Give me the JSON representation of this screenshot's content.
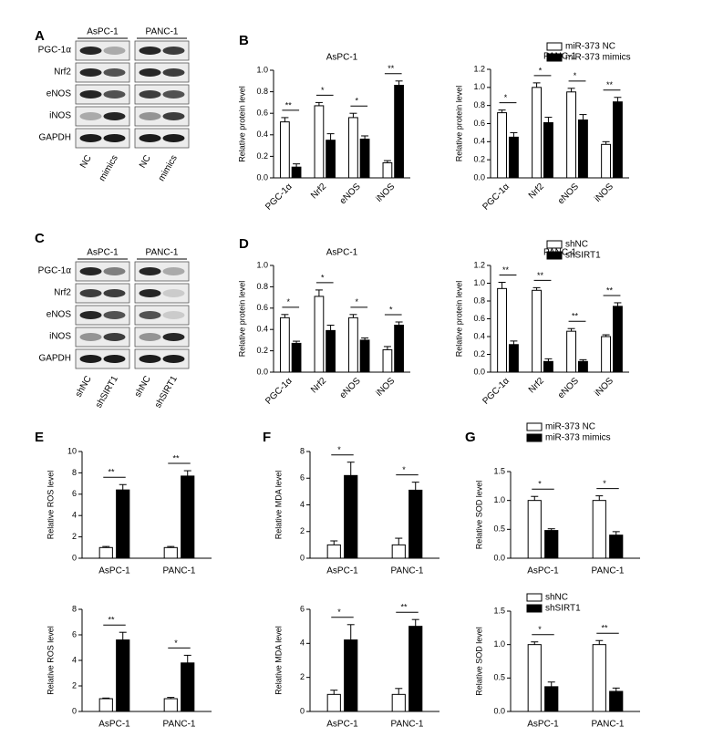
{
  "panels": [
    "A",
    "B",
    "C",
    "D",
    "E",
    "F",
    "G"
  ],
  "blots": [
    {
      "cell_lines": [
        "AsPC-1",
        "PANC-1"
      ],
      "proteins": [
        "PGC-1α",
        "Nrf2",
        "eNOS",
        "iNOS",
        "GAPDH"
      ],
      "lanes": [
        "NC",
        "mimics",
        "NC",
        "mimics"
      ]
    },
    {
      "cell_lines": [
        "AsPC-1",
        "PANC-1"
      ],
      "proteins": [
        "PGC-1α",
        "Nrf2",
        "eNOS",
        "iNOS",
        "GAPDH"
      ],
      "lanes": [
        "shNC",
        "shSIRT1",
        "shNC",
        "shSIRT1"
      ]
    }
  ],
  "chart_data": [
    {
      "type": "bar",
      "title": "AsPC-1",
      "ylabel": "Relative protein level",
      "categories": [
        "PGC-1α",
        "Nrf2",
        "eNOS",
        "iNOS"
      ],
      "series": [
        {
          "color": "#ffffff",
          "values": [
            0.52,
            0.67,
            0.56,
            0.14
          ],
          "errors": [
            0.04,
            0.03,
            0.04,
            0.02
          ]
        },
        {
          "color": "#000000",
          "values": [
            0.1,
            0.35,
            0.36,
            0.86
          ],
          "errors": [
            0.03,
            0.06,
            0.03,
            0.04
          ]
        }
      ],
      "annotations": [
        "**",
        "*",
        "*",
        "**"
      ],
      "ylim": [
        0,
        1
      ],
      "yticks": [
        {
          "value": 0,
          "label": "0.0"
        },
        0.2,
        0.4,
        0.6,
        0.8,
        {
          "value": 1,
          "label": "1.0"
        }
      ]
    },
    {
      "type": "bar",
      "title": "PANC-1",
      "ylabel": "Relative protein level",
      "categories": [
        "PGC-1α",
        "Nrf2",
        "eNOS",
        "iNOS"
      ],
      "series": [
        {
          "name": "miR-373 NC",
          "color": "#ffffff",
          "values": [
            0.72,
            1.0,
            0.95,
            0.37
          ],
          "errors": [
            0.03,
            0.05,
            0.04,
            0.03
          ]
        },
        {
          "name": "miR-373 mimics",
          "color": "#000000",
          "values": [
            0.45,
            0.61,
            0.64,
            0.84
          ],
          "errors": [
            0.05,
            0.06,
            0.06,
            0.05
          ]
        }
      ],
      "annotations": [
        "*",
        "*",
        "*",
        "**"
      ],
      "ylim": [
        0,
        1.2
      ],
      "legend": "upper right",
      "yticks": [
        {
          "value": 0,
          "label": "0.0"
        },
        0.2,
        0.4,
        0.6,
        0.8,
        {
          "value": 1,
          "label": "1.0"
        },
        1.2
      ]
    },
    {
      "type": "bar",
      "title": "AsPC-1",
      "ylabel": "Relative protein level",
      "categories": [
        "PGC-1α",
        "Nrf2",
        "eNOS",
        "iNOS"
      ],
      "series": [
        {
          "color": "#ffffff",
          "values": [
            0.51,
            0.71,
            0.51,
            0.21
          ],
          "errors": [
            0.03,
            0.06,
            0.03,
            0.03
          ]
        },
        {
          "color": "#000000",
          "values": [
            0.27,
            0.39,
            0.3,
            0.44
          ],
          "errors": [
            0.02,
            0.05,
            0.02,
            0.03
          ]
        }
      ],
      "annotations": [
        "*",
        "*",
        "*",
        "*"
      ],
      "ylim": [
        0,
        1
      ],
      "yticks": [
        {
          "value": 0,
          "label": "0.0"
        },
        0.2,
        0.4,
        0.6,
        0.8,
        {
          "value": 1,
          "label": "1.0"
        }
      ]
    },
    {
      "type": "bar",
      "title": "PANC-1",
      "ylabel": "Relative protein level",
      "categories": [
        "PGC-1α",
        "Nrf2",
        "eNOS",
        "iNOS"
      ],
      "series": [
        {
          "name": "shNC",
          "color": "#ffffff",
          "values": [
            0.94,
            0.92,
            0.46,
            0.4
          ],
          "errors": [
            0.07,
            0.03,
            0.03,
            0.02
          ]
        },
        {
          "name": "shSIRT1",
          "color": "#000000",
          "values": [
            0.31,
            0.12,
            0.12,
            0.74
          ],
          "errors": [
            0.04,
            0.03,
            0.02,
            0.04
          ]
        }
      ],
      "annotations": [
        "**",
        "**",
        "**",
        "**"
      ],
      "ylim": [
        0,
        1.2
      ],
      "legend": "upper right",
      "yticks": [
        {
          "value": 0,
          "label": "0.0"
        },
        0.2,
        0.4,
        0.6,
        0.8,
        {
          "value": 1,
          "label": "1.0"
        },
        1.2
      ]
    },
    {
      "type": "bar",
      "ylabel": "Relative ROS level",
      "categories": [
        "AsPC-1",
        "PANC-1"
      ],
      "series": [
        {
          "color": "#ffffff",
          "values": [
            1.0,
            1.0
          ],
          "errors": [
            0.1,
            0.1
          ]
        },
        {
          "color": "#000000",
          "values": [
            6.4,
            7.7
          ],
          "errors": [
            0.5,
            0.5
          ]
        }
      ],
      "annotations": [
        "**",
        "**"
      ],
      "ylim": [
        0,
        10
      ],
      "yticks": [
        0,
        2,
        4,
        6,
        8,
        10
      ]
    },
    {
      "type": "bar",
      "ylabel": "Relative MDA level",
      "categories": [
        "AsPC-1",
        "PANC-1"
      ],
      "series": [
        {
          "color": "#ffffff",
          "values": [
            1.0,
            1.0
          ],
          "errors": [
            0.3,
            0.5
          ]
        },
        {
          "color": "#000000",
          "values": [
            6.2,
            5.1
          ],
          "errors": [
            1.0,
            0.6
          ]
        }
      ],
      "annotations": [
        "*",
        "*"
      ],
      "ylim": [
        0,
        8
      ],
      "yticks": [
        0,
        2,
        4,
        6,
        8
      ]
    },
    {
      "type": "bar",
      "ylabel": "Relative SOD level",
      "categories": [
        "AsPC-1",
        "PANC-1"
      ],
      "series": [
        {
          "name": "miR-373 NC",
          "color": "#ffffff",
          "values": [
            1.0,
            1.0
          ],
          "errors": [
            0.07,
            0.08
          ]
        },
        {
          "name": "miR-373 mimics",
          "color": "#000000",
          "values": [
            0.48,
            0.4
          ],
          "errors": [
            0.03,
            0.06
          ]
        }
      ],
      "annotations": [
        "*",
        "*"
      ],
      "ylim": [
        0,
        1.5
      ],
      "legend": "upper right",
      "yticks": [
        {
          "value": 0,
          "label": "0.0"
        },
        0.5,
        {
          "value": 1,
          "label": "1.0"
        },
        1.5
      ]
    },
    {
      "type": "bar",
      "ylabel": "Relative ROS level",
      "categories": [
        "AsPC-1",
        "PANC-1"
      ],
      "series": [
        {
          "color": "#ffffff",
          "values": [
            1.0,
            1.0
          ],
          "errors": [
            0.05,
            0.1
          ]
        },
        {
          "color": "#000000",
          "values": [
            5.6,
            3.8
          ],
          "errors": [
            0.6,
            0.6
          ]
        }
      ],
      "annotations": [
        "**",
        "*"
      ],
      "ylim": [
        0,
        8
      ],
      "yticks": [
        0,
        2,
        4,
        6,
        8
      ]
    },
    {
      "type": "bar",
      "ylabel": "Relative MDA level",
      "categories": [
        "AsPC-1",
        "PANC-1"
      ],
      "series": [
        {
          "color": "#ffffff",
          "values": [
            1.0,
            1.0
          ],
          "errors": [
            0.25,
            0.35
          ]
        },
        {
          "color": "#000000",
          "values": [
            4.2,
            5.0
          ],
          "errors": [
            0.9,
            0.4
          ]
        }
      ],
      "annotations": [
        "*",
        "**"
      ],
      "ylim": [
        0,
        6
      ],
      "yticks": [
        0,
        2,
        4,
        6
      ]
    },
    {
      "type": "bar",
      "ylabel": "Relative SOD level",
      "categories": [
        "AsPC-1",
        "PANC-1"
      ],
      "series": [
        {
          "name": "shNC",
          "color": "#ffffff",
          "values": [
            1.0,
            1.0
          ],
          "errors": [
            0.04,
            0.06
          ]
        },
        {
          "name": "shSIRT1",
          "color": "#000000",
          "values": [
            0.37,
            0.3
          ],
          "errors": [
            0.07,
            0.05
          ]
        }
      ],
      "annotations": [
        "*",
        "**"
      ],
      "ylim": [
        0,
        1.5
      ],
      "legend": "upper right",
      "yticks": [
        {
          "value": 0,
          "label": "0.0"
        },
        0.5,
        {
          "value": 1,
          "label": "1.0"
        },
        1.5
      ]
    }
  ]
}
